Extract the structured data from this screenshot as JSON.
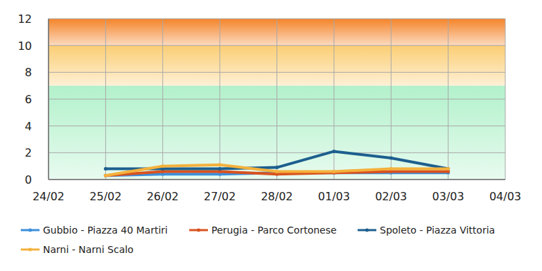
{
  "chart_data": {
    "type": "line",
    "categories": [
      "24/02",
      "25/02",
      "26/02",
      "27/02",
      "28/02",
      "01/03",
      "02/03",
      "03/03",
      "04/03"
    ],
    "series": [
      {
        "name": "Gubbio - Piazza 40 Martiri",
        "color": "#3b8fdc",
        "marker": "circle",
        "values": [
          null,
          0.3,
          0.4,
          0.4,
          0.5,
          0.5,
          0.5,
          0.5,
          null
        ]
      },
      {
        "name": "Perugia - Parco Cortonese",
        "color": "#d9521f",
        "marker": "circle",
        "values": [
          null,
          0.3,
          0.6,
          0.6,
          0.4,
          0.5,
          0.6,
          0.6,
          null
        ]
      },
      {
        "name": "Spoleto - Piazza Vittoria",
        "color": "#1d5f8e",
        "marker": "circle",
        "values": [
          null,
          0.8,
          0.8,
          0.8,
          0.9,
          2.1,
          1.6,
          0.8,
          null
        ]
      },
      {
        "name": "Narni - Narni Scalo",
        "color": "#f4b13c",
        "marker": "circle",
        "values": [
          null,
          0.3,
          1.0,
          1.1,
          0.6,
          0.6,
          0.8,
          0.8,
          null
        ]
      }
    ],
    "bands": [
      {
        "from": 10,
        "to": 12,
        "color": "#f4842a"
      },
      {
        "from": 7,
        "to": 10,
        "color": "#fbce74"
      },
      {
        "from": 0,
        "to": 7,
        "color": "#b2f1cb"
      }
    ],
    "ylim": [
      0,
      12
    ],
    "yticks": [
      0,
      2,
      4,
      6,
      8,
      10,
      12
    ],
    "grid": true,
    "legend": "bottom"
  }
}
